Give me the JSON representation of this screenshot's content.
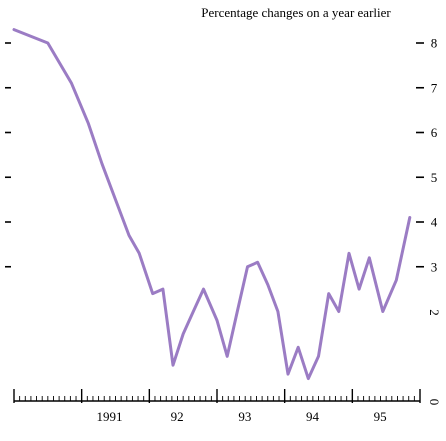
{
  "chart_data": {
    "type": "line",
    "title": "Percentage changes on a year earlier",
    "xlabel": "",
    "ylabel": "",
    "x_tick_labels": [
      "1991",
      "92",
      "93",
      "94",
      "95"
    ],
    "y_tick_labels": [
      "0",
      "2",
      "3",
      "4",
      "5",
      "6",
      "7",
      "8"
    ],
    "ylim": [
      0,
      8
    ],
    "grid": false,
    "line_color": "#9b7cc4",
    "series": [
      {
        "x": [
          1990.0,
          1990.5,
          1990.85,
          1991.1,
          1991.3,
          1991.5,
          1991.7,
          1991.85,
          1992.05,
          1992.2,
          1992.35,
          1992.5,
          1992.65,
          1992.8,
          1993.0,
          1993.15,
          1993.3,
          1993.45,
          1993.6,
          1993.75,
          1993.9,
          1994.05,
          1994.2,
          1994.35,
          1994.5,
          1994.65,
          1994.8,
          1994.95,
          1995.1,
          1995.25,
          1995.45,
          1995.65,
          1995.85
        ],
        "values": [
          8.3,
          8.0,
          7.1,
          6.2,
          5.3,
          4.5,
          3.7,
          3.3,
          2.4,
          2.5,
          0.8,
          1.5,
          2.0,
          2.5,
          1.8,
          1.0,
          2.0,
          3.0,
          3.1,
          2.6,
          2.0,
          0.6,
          1.2,
          0.5,
          1.0,
          2.4,
          2.0,
          3.3,
          2.5,
          3.2,
          2.0,
          2.7,
          4.1
        ]
      }
    ]
  }
}
